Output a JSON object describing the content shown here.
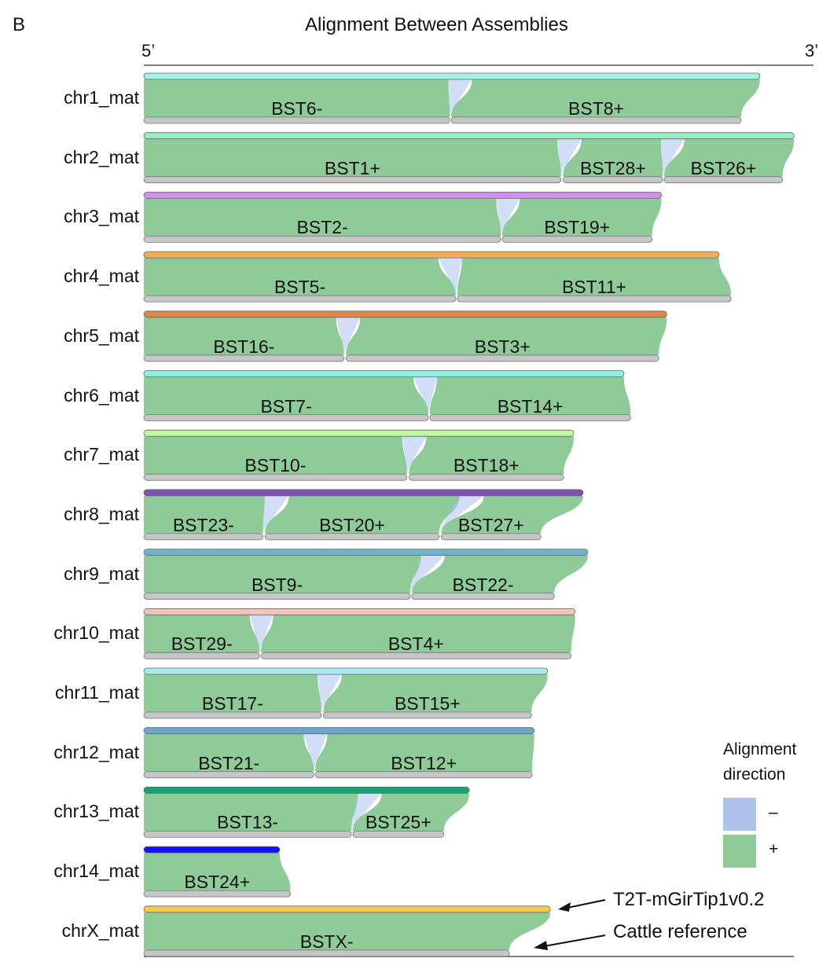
{
  "panel_letter": "B",
  "title": "Alignment Between Assemblies",
  "axis": {
    "left_label": "5’",
    "right_label": "3’",
    "range": [
      0,
      100
    ]
  },
  "legend": {
    "title_line1": "Alignment",
    "title_line2": "direction",
    "items": [
      {
        "symbol": "–",
        "color": "#adc3ec"
      },
      {
        "symbol": "+",
        "color": "#8fcb98"
      }
    ]
  },
  "annotations": {
    "top_track": "T2T-mGirTip1v0.2",
    "bottom_track": "Cattle reference"
  },
  "colors": {
    "plus": "#8fcb98",
    "minus": "#adc3ec",
    "reference": "#c6c6c6"
  },
  "chart_data": {
    "type": "synteny",
    "units": "relative length (axis 5’→3’ = 0–100)",
    "rows": [
      {
        "label": "chr1_mat",
        "color": "#a3f2e2",
        "length": 92.0,
        "segments": [
          {
            "name": "BST6-",
            "range": [
              0,
              45.7
            ]
          },
          {
            "name": "BST8+",
            "range": [
              45.9,
              89.2
            ]
          }
        ]
      },
      {
        "label": "chr2_mat",
        "color": "#95f0c4",
        "length": 97.1,
        "segments": [
          {
            "name": "BST1+",
            "range": [
              0,
              62.3
            ]
          },
          {
            "name": "BST28+",
            "range": [
              62.6,
              77.5
            ]
          },
          {
            "name": "BST26+",
            "range": [
              77.7,
              95.4
            ]
          }
        ]
      },
      {
        "label": "chr3_mat",
        "color": "#d28cf2",
        "length": 77.3,
        "segments": [
          {
            "name": "BST2-",
            "range": [
              0,
              53.3
            ]
          },
          {
            "name": "BST19+",
            "range": [
              53.5,
              75.9
            ]
          }
        ]
      },
      {
        "label": "chr4_mat",
        "color": "#f6aa52",
        "length": 85.9,
        "segments": [
          {
            "name": "BST5-",
            "range": [
              0,
              46.6
            ]
          },
          {
            "name": "BST11+",
            "range": [
              46.8,
              87.7
            ]
          }
        ]
      },
      {
        "label": "chr5_mat",
        "color": "#db8a4c",
        "length": 78.1,
        "segments": [
          {
            "name": "BST16-",
            "range": [
              0,
              29.9
            ]
          },
          {
            "name": "BST3+",
            "range": [
              30.2,
              76.9
            ]
          }
        ]
      },
      {
        "label": "chr6_mat",
        "color": "#93eee2",
        "length": 71.7,
        "segments": [
          {
            "name": "BST7-",
            "range": [
              0,
              42.5
            ]
          },
          {
            "name": "BST14+",
            "range": [
              42.7,
              72.7
            ]
          }
        ]
      },
      {
        "label": "chr7_mat",
        "color": "#c3f6a4",
        "length": 64.2,
        "segments": [
          {
            "name": "BST10-",
            "range": [
              0,
              39.3
            ]
          },
          {
            "name": "BST18+",
            "range": [
              39.6,
              62.7
            ]
          }
        ]
      },
      {
        "label": "chr8_mat",
        "color": "#7c52b6",
        "length": 65.6,
        "segments": [
          {
            "name": "BST23-",
            "range": [
              0,
              17.8
            ]
          },
          {
            "name": "BST20+",
            "range": [
              18.1,
              44.1
            ]
          },
          {
            "name": "BST27+",
            "range": [
              44.4,
              59.3
            ]
          }
        ]
      },
      {
        "label": "chr9_mat",
        "color": "#6cb6cd",
        "length": 66.3,
        "segments": [
          {
            "name": "BST9-",
            "range": [
              0,
              39.8
            ]
          },
          {
            "name": "BST22-",
            "range": [
              40.0,
              61.3
            ]
          }
        ]
      },
      {
        "label": "chr10_mat",
        "color": "#f6c2ba",
        "length": 64.4,
        "segments": [
          {
            "name": "BST29-",
            "range": [
              0,
              17.3
            ]
          },
          {
            "name": "BST4+",
            "range": [
              17.5,
              63.8
            ]
          }
        ]
      },
      {
        "label": "chr11_mat",
        "color": "#aaebf1",
        "length": 60.3,
        "segments": [
          {
            "name": "BST17-",
            "range": [
              0,
              26.5
            ]
          },
          {
            "name": "BST15+",
            "range": [
              26.8,
              57.9
            ]
          }
        ]
      },
      {
        "label": "chr12_mat",
        "color": "#70a4d0",
        "length": 58.3,
        "segments": [
          {
            "name": "BST21-",
            "range": [
              0,
              25.4
            ]
          },
          {
            "name": "BST12+",
            "range": [
              25.6,
              58.0
            ]
          }
        ]
      },
      {
        "label": "chr13_mat",
        "color": "#1a9e72",
        "length": 48.6,
        "segments": [
          {
            "name": "BST13-",
            "range": [
              0,
              31.0
            ]
          },
          {
            "name": "BST25+",
            "range": [
              31.2,
              44.8
            ]
          }
        ]
      },
      {
        "label": "chr14_mat",
        "color": "#1212f0",
        "length": 20.3,
        "segments": [
          {
            "name": "BST24+",
            "range": [
              0,
              21.9
            ]
          }
        ]
      },
      {
        "label": "chrX_mat",
        "color": "#f6ca45",
        "length": 60.7,
        "segments": [
          {
            "name": "BSTX-",
            "range": [
              0,
              54.6
            ]
          }
        ]
      }
    ]
  }
}
